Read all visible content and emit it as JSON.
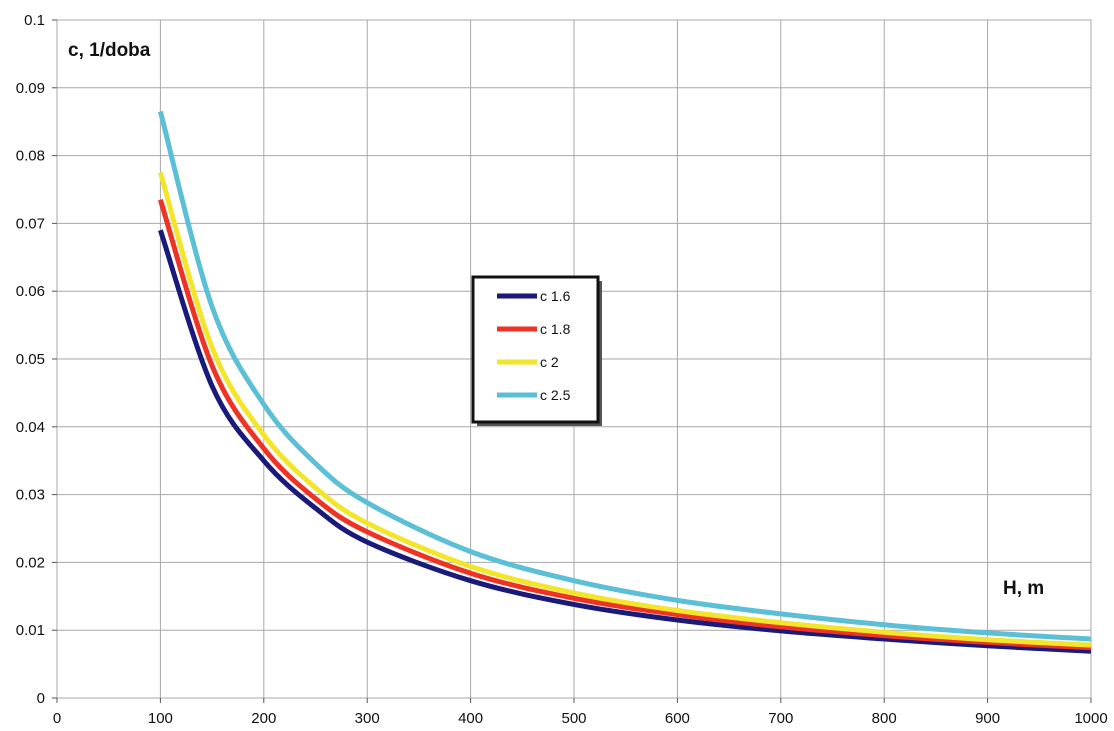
{
  "chart_data": {
    "type": "line",
    "title": "",
    "xlabel": "H, m",
    "ylabel": "c, 1/doba",
    "xlim": [
      0,
      1000
    ],
    "ylim": [
      0,
      0.1
    ],
    "xticks": [
      0,
      100,
      200,
      300,
      400,
      500,
      600,
      700,
      800,
      900,
      1000
    ],
    "yticks": [
      0,
      0.01,
      0.02,
      0.03,
      0.04,
      0.05,
      0.06,
      0.07,
      0.08,
      0.09,
      0.1
    ],
    "xtick_labels": [
      "0",
      "100",
      "200",
      "300",
      "400",
      "500",
      "600",
      "700",
      "800",
      "900",
      "1000"
    ],
    "ytick_labels": [
      "0",
      "0.01",
      "0.02",
      "0.03",
      "0.04",
      "0.05",
      "0.06",
      "0.07",
      "0.08",
      "0.09",
      "0.1"
    ],
    "grid": true,
    "legend_position": "center",
    "x": [
      100,
      150,
      200,
      250,
      300,
      400,
      500,
      600,
      700,
      800,
      900,
      1000
    ],
    "series": [
      {
        "name": "c 1.6",
        "color": "#1a1a7a",
        "values": [
          0.069,
          0.046,
          0.035,
          0.028,
          0.023,
          0.0173,
          0.0138,
          0.0115,
          0.0099,
          0.0087,
          0.0077,
          0.0069
        ]
      },
      {
        "name": "c 1.8",
        "color": "#ee3324",
        "values": [
          0.0735,
          0.049,
          0.0368,
          0.0294,
          0.0245,
          0.0184,
          0.0147,
          0.0123,
          0.0105,
          0.0092,
          0.0082,
          0.0074
        ]
      },
      {
        "name": "c 2",
        "color": "#f2e52a",
        "values": [
          0.0775,
          0.0517,
          0.0388,
          0.031,
          0.0258,
          0.0194,
          0.0155,
          0.0129,
          0.0111,
          0.0097,
          0.0086,
          0.0078
        ]
      },
      {
        "name": "c 2.5",
        "color": "#5bbfd6",
        "values": [
          0.0865,
          0.0577,
          0.0433,
          0.0346,
          0.0288,
          0.0216,
          0.0173,
          0.0144,
          0.0124,
          0.0108,
          0.0096,
          0.0087
        ]
      }
    ]
  }
}
